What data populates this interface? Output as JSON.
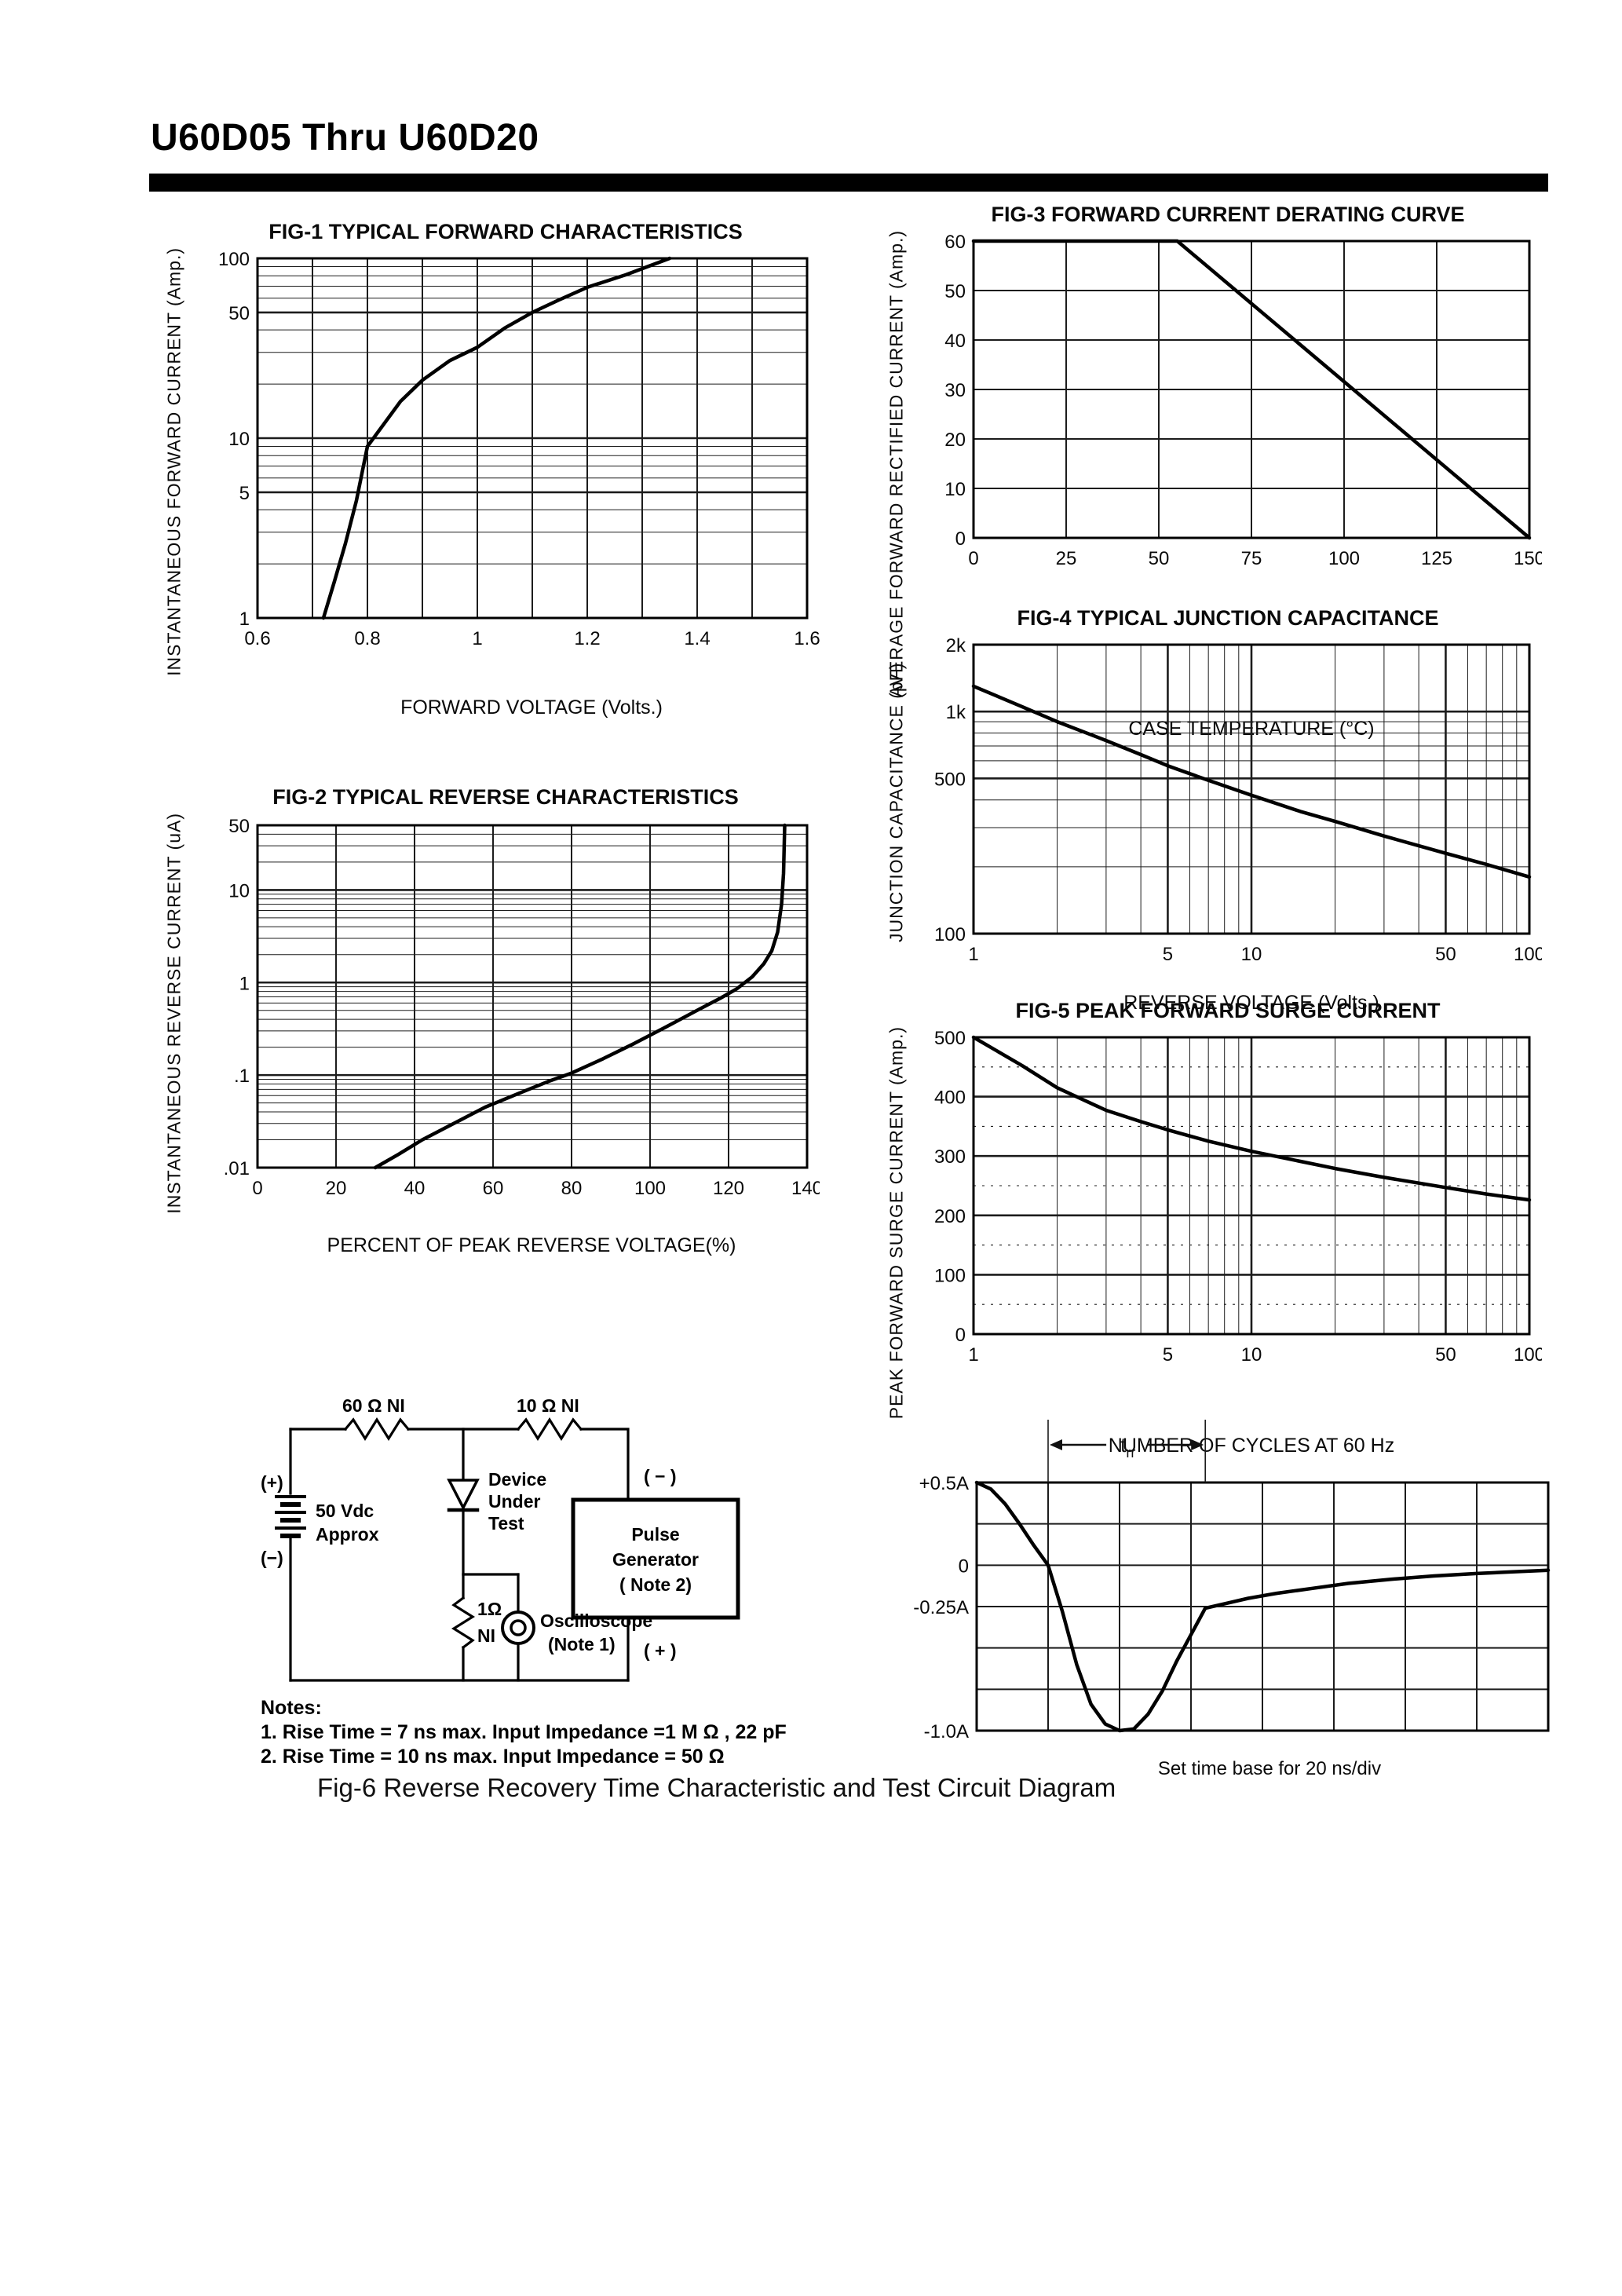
{
  "page": {
    "title": "U60D05 Thru U60D20"
  },
  "chart_data": [
    {
      "id": "fig1",
      "type": "line",
      "title": "FIG-1 TYPICAL FORWARD CHARACTERISTICS",
      "xlabel": "FORWARD VOLTAGE (Volts.)",
      "ylabel": "INSTANTANEOUS FORWARD CURRENT (Amp.)",
      "x": {
        "scale": "linear",
        "min": 0.6,
        "max": 1.6,
        "gridStep": 0.1,
        "uniform": true
      },
      "y": {
        "scale": "log",
        "min": 1,
        "max": 100
      },
      "xticks": [
        {
          "v": 0.6,
          "l": "0.6"
        },
        {
          "v": 0.8,
          "l": "0.8"
        },
        {
          "v": 1,
          "l": "1"
        },
        {
          "v": 1.2,
          "l": "1.2"
        },
        {
          "v": 1.4,
          "l": "1.4"
        },
        {
          "v": 1.6,
          "l": "1.6"
        }
      ],
      "yticks": [
        {
          "v": 100,
          "l": "100"
        },
        {
          "v": 50,
          "l": "50"
        },
        {
          "v": 10,
          "l": "10"
        },
        {
          "v": 5,
          "l": "5"
        },
        {
          "v": 1,
          "l": "1"
        }
      ],
      "series": [
        {
          "points": [
            [
              0.72,
              1
            ],
            [
              0.74,
              1.6
            ],
            [
              0.76,
              2.6
            ],
            [
              0.78,
              4.5
            ],
            [
              0.8,
              9
            ],
            [
              0.83,
              12
            ],
            [
              0.86,
              16
            ],
            [
              0.9,
              21
            ],
            [
              0.95,
              27
            ],
            [
              1.0,
              32
            ],
            [
              1.05,
              41
            ],
            [
              1.1,
              50
            ],
            [
              1.15,
              59
            ],
            [
              1.2,
              69
            ],
            [
              1.27,
              81
            ],
            [
              1.35,
              100
            ]
          ]
        }
      ]
    },
    {
      "id": "fig2",
      "type": "line",
      "title": "FIG-2 TYPICAL REVERSE CHARACTERISTICS",
      "xlabel": "PERCENT OF PEAK REVERSE VOLTAGE(%)",
      "ylabel": "INSTANTANEOUS REVERSE CURRENT (uA)",
      "x": {
        "scale": "linear",
        "min": 0,
        "max": 140,
        "gridStep": 20,
        "uniform": true
      },
      "y": {
        "scale": "log",
        "min": 0.01,
        "max": 50
      },
      "xticks": [
        {
          "v": 0,
          "l": "0"
        },
        {
          "v": 20,
          "l": "20"
        },
        {
          "v": 40,
          "l": "40"
        },
        {
          "v": 60,
          "l": "60"
        },
        {
          "v": 80,
          "l": "80"
        },
        {
          "v": 100,
          "l": "100"
        },
        {
          "v": 120,
          "l": "120"
        },
        {
          "v": 140,
          "l": "140"
        }
      ],
      "yticks": [
        {
          "v": 50,
          "l": "50"
        },
        {
          "v": 10,
          "l": "10"
        },
        {
          "v": 1,
          "l": "1"
        },
        {
          "v": 0.1,
          "l": ".1"
        },
        {
          "v": 0.01,
          "l": ".01"
        }
      ],
      "series": [
        {
          "points": [
            [
              30,
              0.01
            ],
            [
              36,
              0.014
            ],
            [
              42,
              0.02
            ],
            [
              50,
              0.03
            ],
            [
              58,
              0.045
            ],
            [
              66,
              0.062
            ],
            [
              74,
              0.085
            ],
            [
              80,
              0.105
            ],
            [
              88,
              0.15
            ],
            [
              96,
              0.22
            ],
            [
              104,
              0.33
            ],
            [
              112,
              0.5
            ],
            [
              118,
              0.68
            ],
            [
              122,
              0.85
            ],
            [
              126,
              1.15
            ],
            [
              129,
              1.6
            ],
            [
              131,
              2.2
            ],
            [
              132.5,
              3.5
            ],
            [
              133.5,
              7
            ],
            [
              134,
              15
            ],
            [
              134.3,
              50
            ]
          ]
        }
      ]
    },
    {
      "id": "fig3",
      "type": "line",
      "title": "FIG-3 FORWARD CURRENT DERATING CURVE",
      "xlabel": "CASE TEMPERATURE (°C)",
      "ylabel": "AVERAGE FORWARD RECTIFIED CURRENT (Amp.)",
      "x": {
        "scale": "linear",
        "min": 0,
        "max": 150,
        "gridStep": 25,
        "uniform": true
      },
      "y": {
        "scale": "linear",
        "min": 0,
        "max": 60,
        "gridStep": 10,
        "uniform": true
      },
      "xticks": [
        {
          "v": 0,
          "l": "0"
        },
        {
          "v": 25,
          "l": "25"
        },
        {
          "v": 50,
          "l": "50"
        },
        {
          "v": 75,
          "l": "75"
        },
        {
          "v": 100,
          "l": "100"
        },
        {
          "v": 125,
          "l": "125"
        },
        {
          "v": 150,
          "l": "150"
        }
      ],
      "yticks": [
        {
          "v": 60,
          "l": "60"
        },
        {
          "v": 50,
          "l": "50"
        },
        {
          "v": 40,
          "l": "40"
        },
        {
          "v": 30,
          "l": "30"
        },
        {
          "v": 20,
          "l": "20"
        },
        {
          "v": 10,
          "l": "10"
        },
        {
          "v": 0,
          "l": "0"
        }
      ],
      "series": [
        {
          "points": [
            [
              0,
              60
            ],
            [
              55,
              60
            ],
            [
              150,
              0
            ]
          ]
        }
      ]
    },
    {
      "id": "fig4",
      "type": "line",
      "title": "FIG-4 TYPICAL JUNCTION CAPACITANCE",
      "xlabel": "REVERSE VOLTAGE (Volts.)",
      "ylabel": "JUNCTION CAPACITANCE (pF)",
      "x": {
        "scale": "log",
        "min": 1,
        "max": 100
      },
      "y": {
        "scale": "log",
        "min": 100,
        "max": 2000
      },
      "xticks": [
        {
          "v": 1,
          "l": "1"
        },
        {
          "v": 5,
          "l": "5"
        },
        {
          "v": 10,
          "l": "10"
        },
        {
          "v": 50,
          "l": "50"
        },
        {
          "v": 100,
          "l": "100"
        }
      ],
      "yticks": [
        {
          "v": 2000,
          "l": "2k"
        },
        {
          "v": 1000,
          "l": "1k"
        },
        {
          "v": 500,
          "l": "500"
        },
        {
          "v": 100,
          "l": "100"
        }
      ],
      "series": [
        {
          "points": [
            [
              1,
              1300
            ],
            [
              1.5,
              1050
            ],
            [
              2,
              900
            ],
            [
              3,
              740
            ],
            [
              4,
              640
            ],
            [
              5,
              570
            ],
            [
              7,
              490
            ],
            [
              10,
              420
            ],
            [
              15,
              355
            ],
            [
              20,
              320
            ],
            [
              30,
              275
            ],
            [
              50,
              230
            ],
            [
              70,
              205
            ],
            [
              100,
              180
            ]
          ]
        }
      ]
    },
    {
      "id": "fig5",
      "type": "line",
      "title": "FIG-5 PEAK FORWARD SURGE CURRENT",
      "xlabel": "NUMBER OF CYCLES AT 60 Hz",
      "ylabel": "PEAK FORWARD SURGE CURRENT (Amp.)",
      "x": {
        "scale": "log",
        "min": 1,
        "max": 100
      },
      "y": {
        "scale": "linear",
        "min": 0,
        "max": 500,
        "gridStep": 100,
        "minorStep": 50
      },
      "xticks": [
        {
          "v": 1,
          "l": "1"
        },
        {
          "v": 5,
          "l": "5"
        },
        {
          "v": 10,
          "l": "10"
        },
        {
          "v": 50,
          "l": "50"
        },
        {
          "v": 100,
          "l": "100"
        }
      ],
      "yticks": [
        {
          "v": 500,
          "l": "500"
        },
        {
          "v": 400,
          "l": "400"
        },
        {
          "v": 300,
          "l": "300"
        },
        {
          "v": 200,
          "l": "200"
        },
        {
          "v": 100,
          "l": "100"
        },
        {
          "v": 0,
          "l": "0"
        }
      ],
      "series": [
        {
          "points": [
            [
              1,
              500
            ],
            [
              1.5,
              452
            ],
            [
              2,
              415
            ],
            [
              3,
              377
            ],
            [
              4,
              358
            ],
            [
              5,
              344
            ],
            [
              7,
              325
            ],
            [
              10,
              308
            ],
            [
              15,
              291
            ],
            [
              20,
              279
            ],
            [
              30,
              264
            ],
            [
              50,
              247
            ],
            [
              70,
              236
            ],
            [
              100,
              226
            ]
          ]
        }
      ]
    },
    {
      "id": "fig6-waveform",
      "type": "line",
      "title": "",
      "xlabel": "Set time base for 20  ns/div",
      "ylabel": "",
      "x": {
        "scale": "linear",
        "min": 0,
        "max": 8,
        "gridStep": 1,
        "uniform": true
      },
      "y": {
        "scale": "linear",
        "min": -1,
        "max": 0.5,
        "gridStep": 0.25,
        "uniform": true
      },
      "xticks": [],
      "yticks": [
        {
          "v": 0.5,
          "l": "+0.5A"
        },
        {
          "v": 0,
          "l": "0"
        },
        {
          "v": -0.25,
          "l": "-0.25A"
        },
        {
          "v": -1,
          "l": "-1.0A"
        }
      ],
      "series": [
        {
          "points": [
            [
              0,
              0.5
            ],
            [
              0.2,
              0.46
            ],
            [
              0.4,
              0.37
            ],
            [
              0.6,
              0.25
            ],
            [
              0.8,
              0.12
            ],
            [
              1.0,
              0
            ],
            [
              1.2,
              -0.28
            ],
            [
              1.4,
              -0.6
            ],
            [
              1.6,
              -0.84
            ],
            [
              1.8,
              -0.96
            ],
            [
              2.0,
              -1.0
            ],
            [
              2.2,
              -0.99
            ],
            [
              2.4,
              -0.9
            ],
            [
              2.6,
              -0.76
            ],
            [
              2.8,
              -0.58
            ],
            [
              3.0,
              -0.42
            ],
            [
              3.2,
              -0.26
            ],
            [
              3.5,
              -0.23
            ],
            [
              3.8,
              -0.2
            ],
            [
              4.2,
              -0.17
            ],
            [
              4.7,
              -0.14
            ],
            [
              5.2,
              -0.11
            ],
            [
              5.8,
              -0.085
            ],
            [
              6.4,
              -0.065
            ],
            [
              7.0,
              -0.05
            ],
            [
              7.5,
              -0.04
            ],
            [
              8.0,
              -0.03
            ]
          ]
        }
      ],
      "annotation": {
        "x1": 1.0,
        "x2": 3.2,
        "label_main": "t",
        "label_sub": "rr"
      }
    }
  ],
  "circuit": {
    "r1": "60 Ω  NI",
    "r2": "10 Ω  NI",
    "battery_plus": "(+)",
    "battery_minus": "(−)",
    "battery_line1": "50 Vdc",
    "battery_line2": "Approx",
    "dut_line1": "Device",
    "dut_line2": "Under",
    "dut_line3": "Test",
    "r3_line1": "1Ω",
    "r3_line2": "NI",
    "scope_line1": "Oscilloscope",
    "scope_line2": "(Note 1)",
    "pg_line1": "Pulse",
    "pg_line2": "Generator",
    "pg_line3": "( Note 2)",
    "pg_minus": "( − )",
    "pg_plus": "( + )"
  },
  "notes": {
    "heading": "Notes:",
    "line1": "1. Rise Time = 7 ns max. Input Impedance =1 M Ω , 22 pF",
    "line2": "2. Rise Time = 10 ns max. Input Impedance = 50 Ω"
  },
  "fig6_caption": "Fig-6 Reverse Recovery Time Characteristic and Test Circuit Diagram"
}
